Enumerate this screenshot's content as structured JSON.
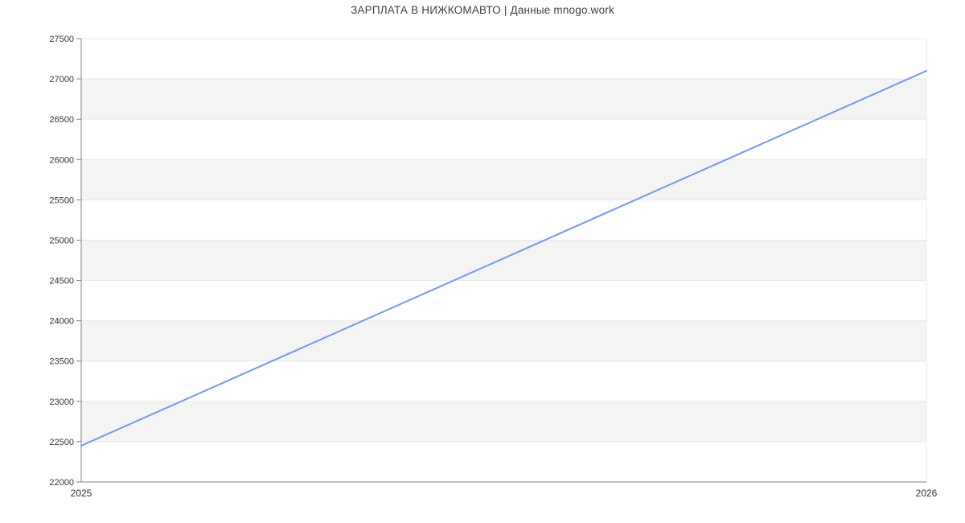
{
  "chart": {
    "title": "ЗАРПЛАТА В НИЖКОМАВТО | Данные mnogo.work"
  },
  "chart_data": {
    "type": "line",
    "title": "ЗАРПЛАТА В НИЖКОМАВТО | Данные mnogo.work",
    "x": [
      2025,
      2026
    ],
    "x_tick_labels": [
      "2025",
      "2026"
    ],
    "series": [
      {
        "name": "ЗАРПЛАТА В НИЖКОМАВТО",
        "values": [
          22450,
          27100
        ]
      }
    ],
    "xlabel": "",
    "ylabel": "",
    "y_axis": {
      "min": 22000,
      "max": 27500,
      "step": 500
    },
    "y_tick_labels": [
      "22000",
      "22500",
      "23000",
      "23500",
      "24000",
      "24500",
      "25000",
      "25500",
      "26000",
      "26500",
      "27000",
      "27500"
    ],
    "bands": [
      [
        22500,
        23000
      ],
      [
        23500,
        24000
      ],
      [
        24500,
        25000
      ],
      [
        25500,
        26000
      ],
      [
        26500,
        27000
      ]
    ],
    "grid": true,
    "legend": false,
    "colors": {
      "line": "#7499e9",
      "band": "#f4f4f4",
      "gridline": "#e8e8e8",
      "axis": "#808080",
      "y_tick_text": "#333333",
      "x_tick_text": "#333333",
      "title_text": "#3f3f3f",
      "background": "#ffffff"
    }
  }
}
